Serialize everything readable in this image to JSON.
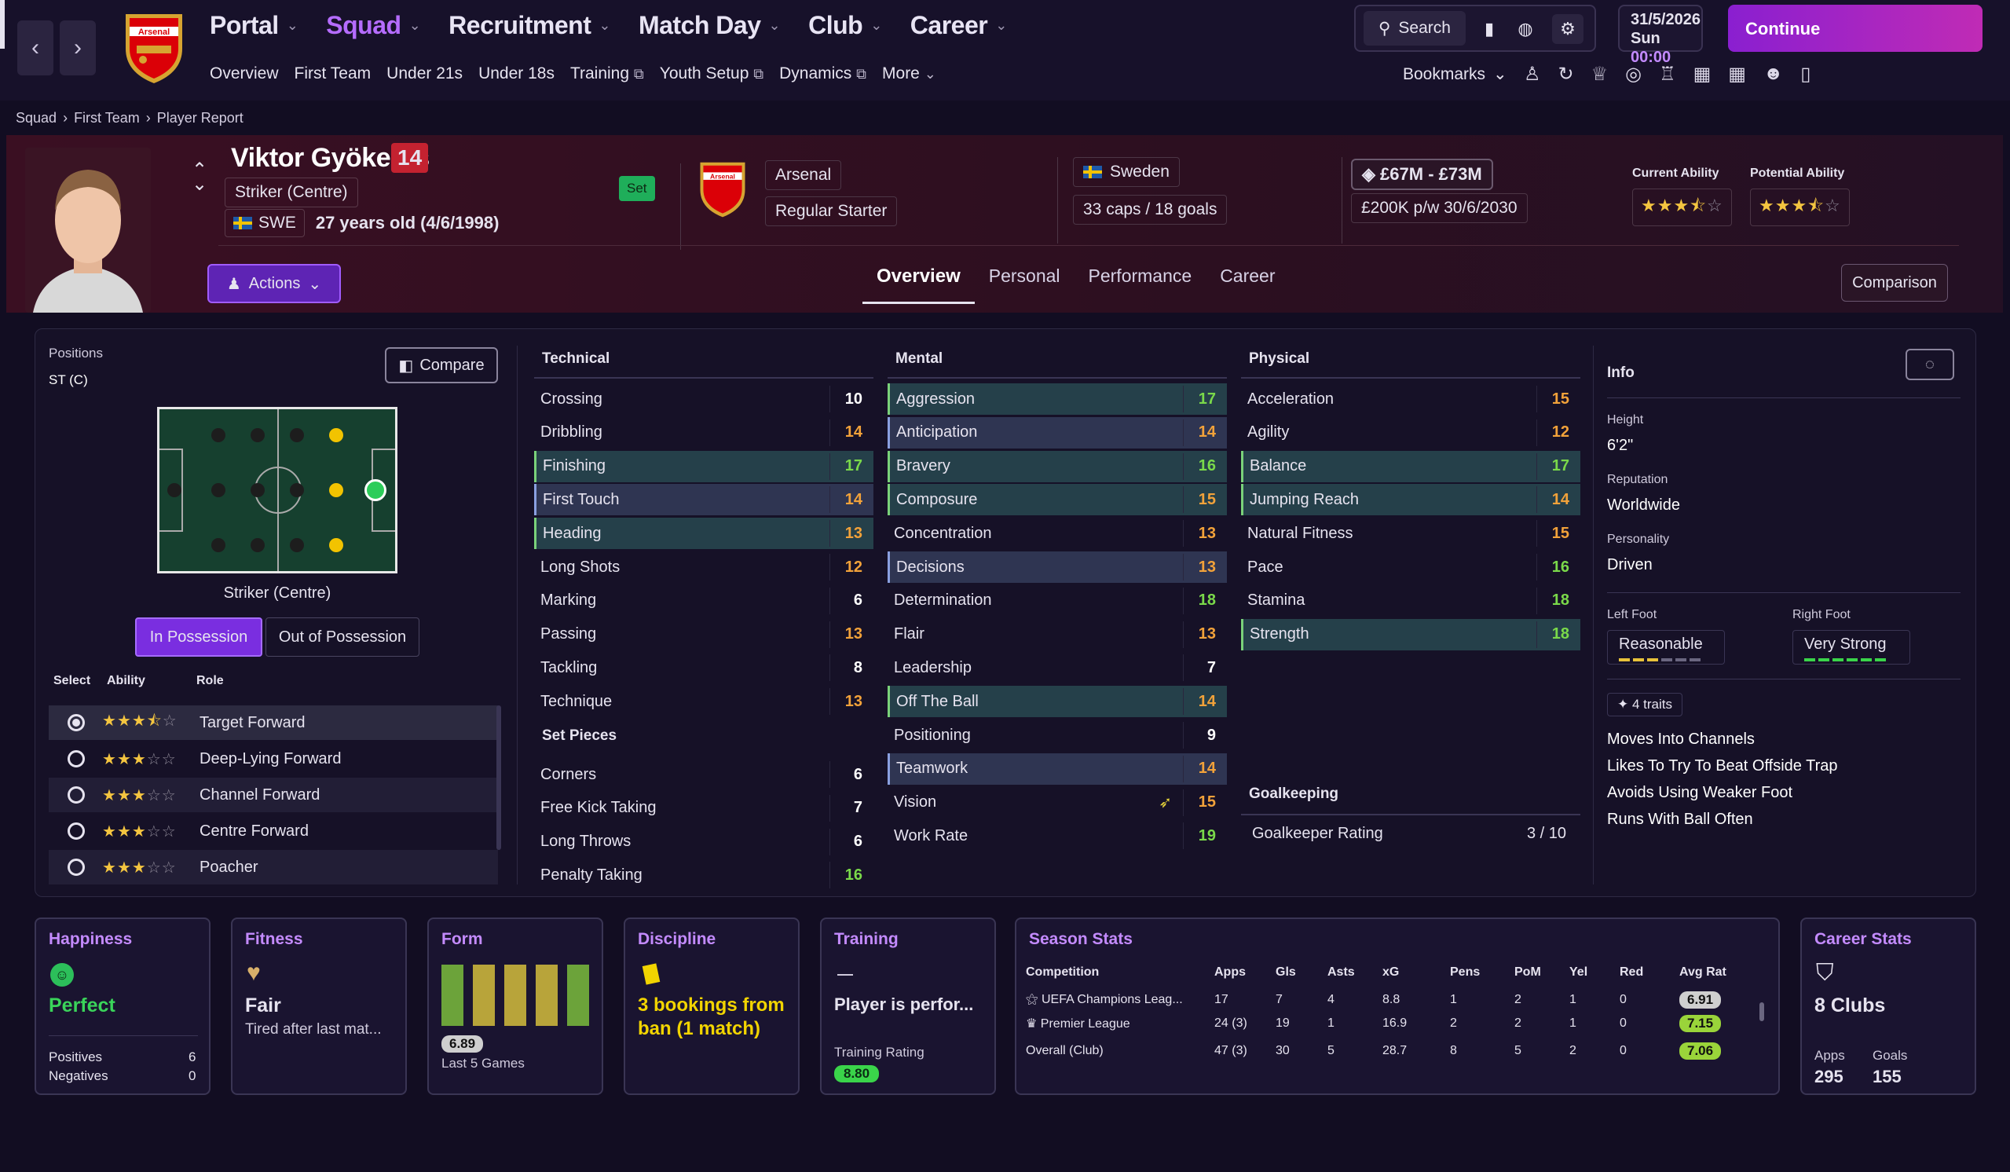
{
  "nav": {
    "main": [
      "Portal",
      "Squad",
      "Recruitment",
      "Match Day",
      "Club",
      "Career"
    ],
    "sub": [
      "Overview",
      "First Team",
      "Under 21s",
      "Under 18s",
      "Training",
      "Youth Setup",
      "Dynamics",
      "More"
    ],
    "search": "Search",
    "date": "31/5/2026",
    "day": "Sun",
    "time": "00:00",
    "continue": "Continue",
    "bookmarks": "Bookmarks"
  },
  "breadcrumb": [
    "Squad",
    "First Team",
    "Player Report"
  ],
  "player": {
    "name": "Viktor Gyökeres",
    "number": "14",
    "position": "Striker (Centre)",
    "nation_code": "SWE",
    "age": "27 years old (4/6/1998)",
    "set": "Set",
    "club": "Arsenal",
    "crest_text": "Arsenal",
    "squad_status": "Regular Starter",
    "nation": "Sweden",
    "caps": "33 caps / 18 goals",
    "value": "£67M - £73M",
    "contract": "£200K p/w 30/6/2030",
    "ca_label": "Current Ability",
    "pa_label": "Potential Ability",
    "ca_stars": 3.5,
    "pa_stars": 3.5
  },
  "actions": "Actions",
  "tabs": [
    "Overview",
    "Personal",
    "Performance",
    "Career"
  ],
  "comparison": "Comparison",
  "positions": {
    "label": "Positions",
    "value": "ST (C)",
    "compare": "Compare",
    "pitch_caption": "Striker (Centre)",
    "in_possession": "In Possession",
    "out_possession": "Out of Possession",
    "headers": [
      "Select",
      "Ability",
      "Role"
    ],
    "roles": [
      {
        "name": "Target Forward",
        "stars": 3.5,
        "selected": true
      },
      {
        "name": "Deep-Lying Forward",
        "stars": 3,
        "selected": false
      },
      {
        "name": "Channel Forward",
        "stars": 3,
        "selected": false
      },
      {
        "name": "Centre Forward",
        "stars": 3,
        "selected": false
      },
      {
        "name": "Poacher",
        "stars": 3,
        "selected": false
      }
    ]
  },
  "technical": {
    "title": "Technical",
    "items": [
      {
        "n": "Crossing",
        "v": 10,
        "c": "w",
        "h": ""
      },
      {
        "n": "Dribbling",
        "v": 14,
        "c": "o",
        "h": ""
      },
      {
        "n": "Finishing",
        "v": 17,
        "c": "g",
        "h": "hl"
      },
      {
        "n": "First Touch",
        "v": 14,
        "c": "o",
        "h": "hl2"
      },
      {
        "n": "Heading",
        "v": 13,
        "c": "o",
        "h": "hl"
      },
      {
        "n": "Long Shots",
        "v": 12,
        "c": "o",
        "h": ""
      },
      {
        "n": "Marking",
        "v": 6,
        "c": "w",
        "h": ""
      },
      {
        "n": "Passing",
        "v": 13,
        "c": "o",
        "h": ""
      },
      {
        "n": "Tackling",
        "v": 8,
        "c": "w",
        "h": ""
      },
      {
        "n": "Technique",
        "v": 13,
        "c": "o",
        "h": ""
      }
    ]
  },
  "setpieces": {
    "title": "Set Pieces",
    "items": [
      {
        "n": "Corners",
        "v": 6,
        "c": "w",
        "h": ""
      },
      {
        "n": "Free Kick Taking",
        "v": 7,
        "c": "w",
        "h": ""
      },
      {
        "n": "Long Throws",
        "v": 6,
        "c": "w",
        "h": ""
      },
      {
        "n": "Penalty Taking",
        "v": 16,
        "c": "g",
        "h": ""
      }
    ]
  },
  "mental": {
    "title": "Mental",
    "items": [
      {
        "n": "Aggression",
        "v": 17,
        "c": "g",
        "h": "hl"
      },
      {
        "n": "Anticipation",
        "v": 14,
        "c": "o",
        "h": "hl2"
      },
      {
        "n": "Bravery",
        "v": 16,
        "c": "g",
        "h": "hl"
      },
      {
        "n": "Composure",
        "v": 15,
        "c": "o",
        "h": "hl"
      },
      {
        "n": "Concentration",
        "v": 13,
        "c": "o",
        "h": ""
      },
      {
        "n": "Decisions",
        "v": 13,
        "c": "o",
        "h": "hl2"
      },
      {
        "n": "Determination",
        "v": 18,
        "c": "g",
        "h": ""
      },
      {
        "n": "Flair",
        "v": 13,
        "c": "o",
        "h": ""
      },
      {
        "n": "Leadership",
        "v": 7,
        "c": "w",
        "h": ""
      },
      {
        "n": "Off The Ball",
        "v": 14,
        "c": "o",
        "h": "hl"
      },
      {
        "n": "Positioning",
        "v": 9,
        "c": "w",
        "h": ""
      },
      {
        "n": "Teamwork",
        "v": 14,
        "c": "o",
        "h": "hl2"
      },
      {
        "n": "Vision",
        "v": 15,
        "c": "o",
        "h": ""
      },
      {
        "n": "Work Rate",
        "v": 19,
        "c": "g",
        "h": ""
      }
    ]
  },
  "physical": {
    "title": "Physical",
    "items": [
      {
        "n": "Acceleration",
        "v": 15,
        "c": "o",
        "h": ""
      },
      {
        "n": "Agility",
        "v": 12,
        "c": "o",
        "h": ""
      },
      {
        "n": "Balance",
        "v": 17,
        "c": "g",
        "h": "hl"
      },
      {
        "n": "Jumping Reach",
        "v": 14,
        "c": "o",
        "h": "hl"
      },
      {
        "n": "Natural Fitness",
        "v": 15,
        "c": "o",
        "h": ""
      },
      {
        "n": "Pace",
        "v": 16,
        "c": "g",
        "h": ""
      },
      {
        "n": "Stamina",
        "v": 18,
        "c": "g",
        "h": ""
      },
      {
        "n": "Strength",
        "v": 18,
        "c": "g",
        "h": "hl"
      }
    ]
  },
  "goalkeeping": {
    "title": "Goalkeeping",
    "label": "Goalkeeper Rating",
    "value": "3 / 10"
  },
  "info": {
    "title": "Info",
    "height_label": "Height",
    "height": "6'2\"",
    "rep_label": "Reputation",
    "rep": "Worldwide",
    "pers_label": "Personality",
    "pers": "Driven",
    "left_label": "Left Foot",
    "left": "Reasonable",
    "right_label": "Right Foot",
    "right": "Very Strong",
    "traits_count": "4 traits",
    "traits": [
      "Moves Into Channels",
      "Likes To Try To Beat Offside Trap",
      "Avoids Using Weaker Foot",
      "Runs With Ball Often"
    ]
  },
  "cards": {
    "happiness": {
      "title": "Happiness",
      "status": "Perfect",
      "pos_label": "Positives",
      "pos": "6",
      "neg_label": "Negatives",
      "neg": "0"
    },
    "fitness": {
      "title": "Fitness",
      "status": "Fair",
      "note": "Tired after last mat..."
    },
    "form": {
      "title": "Form",
      "rating": "6.89",
      "label": "Last 5 Games"
    },
    "discipline": {
      "title": "Discipline",
      "text1": "3 bookings from",
      "text2": "ban (1 match)"
    },
    "training": {
      "title": "Training",
      "note": "Player is perfor...",
      "rating_label": "Training Rating",
      "rating": "8.80"
    },
    "season": {
      "title": "Season Stats",
      "headers": [
        "Competition",
        "Apps",
        "Gls",
        "Asts",
        "xG",
        "Pens",
        "PoM",
        "Yel",
        "Red",
        "Avg Rat"
      ],
      "rows": [
        [
          "UEFA Champions Leag...",
          "17",
          "7",
          "4",
          "8.8",
          "1",
          "2",
          "1",
          "0",
          "6.91"
        ],
        [
          "Premier League",
          "24 (3)",
          "19",
          "1",
          "16.9",
          "2",
          "2",
          "1",
          "0",
          "7.15"
        ],
        [
          "Overall (Club)",
          "47 (3)",
          "30",
          "5",
          "28.7",
          "8",
          "5",
          "2",
          "0",
          "7.06"
        ]
      ]
    },
    "career": {
      "title": "Career Stats",
      "clubs": "8 Clubs",
      "apps_label": "Apps",
      "apps": "295",
      "goals_label": "Goals",
      "goals": "155"
    }
  }
}
